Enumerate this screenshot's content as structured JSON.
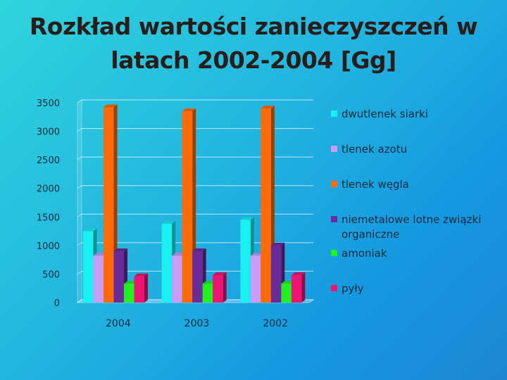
{
  "title_lines": [
    "Rozkład wartości zanieczyszczeń w",
    "latach 2002-2004 [Gg]"
  ],
  "chart_data": {
    "type": "bar",
    "categories": [
      "2004",
      "2003",
      "2002"
    ],
    "series": [
      {
        "name": "dwutlenek siarki",
        "color": "#19f0f2",
        "values": [
          1250,
          1380,
          1450
        ]
      },
      {
        "name": "tlenek azotu",
        "color": "#c89cf8",
        "values": [
          820,
          820,
          820
        ]
      },
      {
        "name": "tlenek węgla",
        "color": "#ff6a08",
        "values": [
          3420,
          3350,
          3400
        ]
      },
      {
        "name": "niemetalowe lotne związki organiczne",
        "color": "#6a2a9a",
        "values": [
          900,
          900,
          1000
        ]
      },
      {
        "name": "amoniak",
        "color": "#22f022",
        "values": [
          330,
          330,
          330
        ]
      },
      {
        "name": "pyły",
        "color": "#f01472",
        "values": [
          460,
          480,
          480
        ]
      }
    ],
    "yticks": [
      "3500",
      "3000",
      "2500",
      "2000",
      "1500",
      "1000",
      "500",
      "0"
    ],
    "ylim": [
      0,
      3500
    ],
    "grid": true,
    "legend_position": "right"
  }
}
